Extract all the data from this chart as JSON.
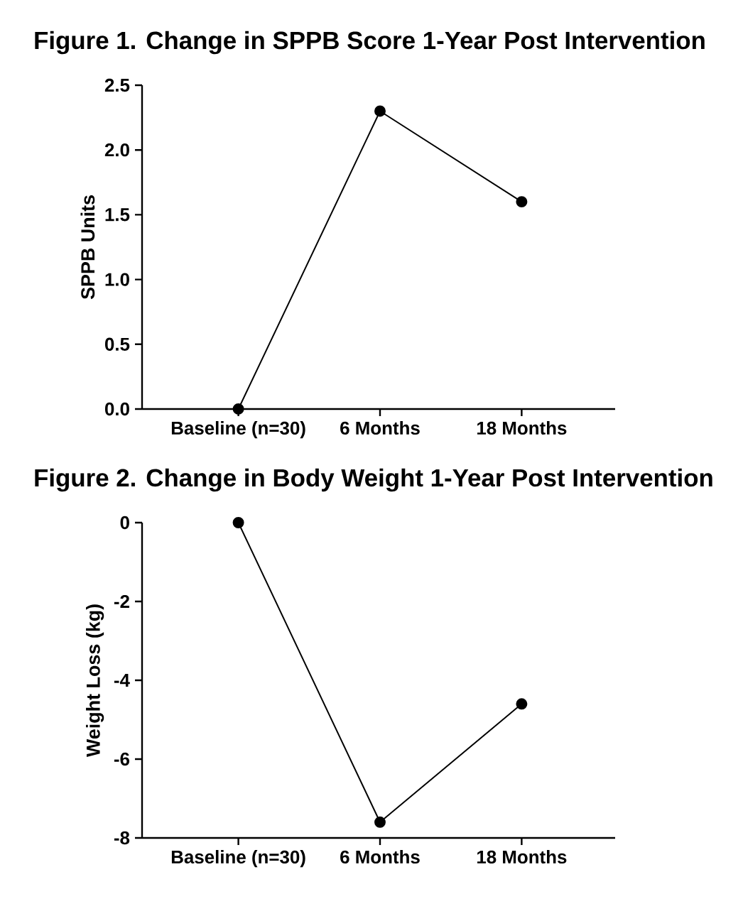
{
  "chart_data": [
    {
      "type": "line",
      "title": "Figure 1. Change in SPPB Score 1-Year Post Intervention",
      "ylabel": "SPPB Units",
      "categories": [
        "Baseline (n=30)",
        "6 Months",
        "18 Months"
      ],
      "values": [
        0,
        2.3,
        1.6
      ],
      "color": "#000000",
      "marker": "circle",
      "ylim": [
        0,
        2.5
      ],
      "yticks": [
        {
          "value": 0,
          "label": "0.0"
        },
        {
          "value": 0.5,
          "label": "0.5"
        },
        {
          "value": 1,
          "label": "1.0"
        },
        {
          "value": 1.5,
          "label": "1.5"
        },
        {
          "value": 2,
          "label": "2.0"
        },
        {
          "value": 2.5,
          "label": "2.5"
        }
      ]
    },
    {
      "type": "line",
      "title": "Figure 2. Change in Body Weight 1-Year Post Intervention",
      "ylabel": "Weight Loss (kg)",
      "categories": [
        "Baseline (n=30)",
        "6 Months",
        "18 Months"
      ],
      "values": [
        0,
        -7.6,
        -4.6
      ],
      "color": "#000000",
      "marker": "circle",
      "ylim": [
        -8,
        0
      ],
      "yticks": [
        -8,
        -6,
        -4,
        -2,
        0
      ]
    }
  ]
}
